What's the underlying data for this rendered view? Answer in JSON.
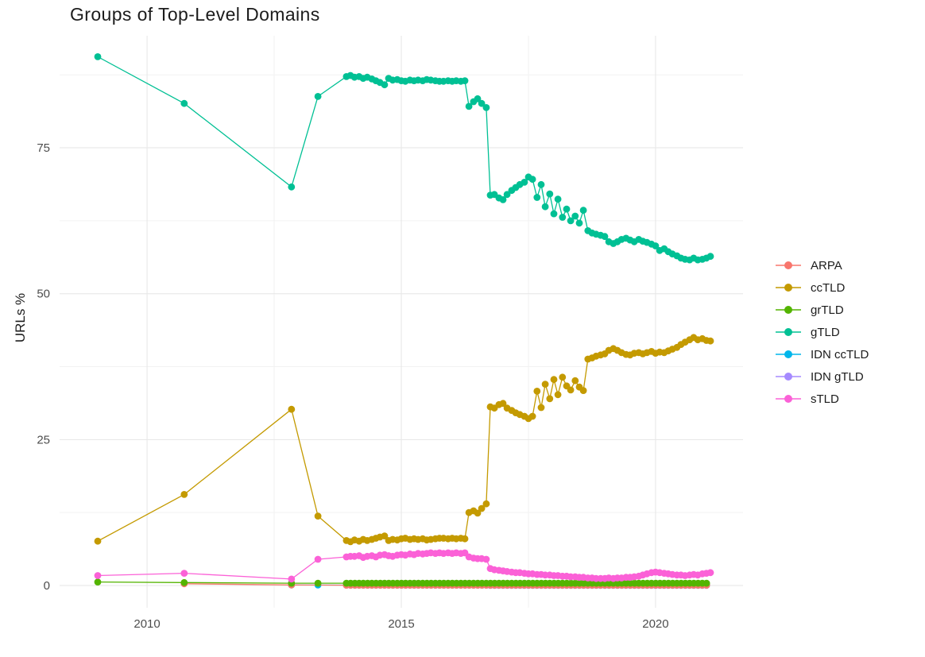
{
  "page": {
    "background": "#ffffff"
  },
  "chart_data": {
    "type": "scatter",
    "title": "Groups of Top-Level Domains",
    "xlabel": "",
    "ylabel": "URLs %",
    "legend_position": "right",
    "grid": "major and minor gridlines, light gray on white",
    "xlim": [
      2008.28,
      2021.72
    ],
    "ylim": [
      -3.81,
      94.2
    ],
    "x_ticks": [
      {
        "v": 2010,
        "label": "2010"
      },
      {
        "v": 2015,
        "label": "2015"
      },
      {
        "v": 2020,
        "label": "2020"
      }
    ],
    "x_minor": [
      2012.5,
      2017.5
    ],
    "y_ticks": [
      {
        "v": 0,
        "label": "0"
      },
      {
        "v": 25,
        "label": "25"
      },
      {
        "v": 50,
        "label": "50"
      },
      {
        "v": 75,
        "label": "75"
      }
    ],
    "y_minor": [
      12.5,
      37.5,
      62.5,
      87.5
    ],
    "draw_order": [
      5,
      4,
      0,
      2,
      6,
      1,
      3
    ],
    "series": [
      {
        "name": "ARPA",
        "color": "#F8766D",
        "points": [
          [
            2010.73,
            0.3
          ],
          [
            2012.84,
            0.1
          ]
        ],
        "flat": {
          "from": 2013.92,
          "to": 2021.08,
          "value": 0.05
        }
      },
      {
        "name": "ccTLD",
        "color": "#C49A00",
        "points": [
          [
            2009.03,
            7.6
          ],
          [
            2010.73,
            15.6
          ],
          [
            2012.84,
            30.2
          ],
          [
            2013.36,
            11.9
          ],
          [
            2013.92,
            7.7
          ],
          [
            2014,
            7.5
          ],
          [
            2014.08,
            7.8
          ],
          [
            2014.17,
            7.6
          ],
          [
            2014.25,
            7.9
          ],
          [
            2014.33,
            7.7
          ],
          [
            2014.42,
            7.9
          ],
          [
            2014.5,
            8.1
          ],
          [
            2014.58,
            8.3
          ],
          [
            2014.67,
            8.5
          ],
          [
            2014.75,
            7.7
          ],
          [
            2014.83,
            7.9
          ],
          [
            2014.92,
            7.8
          ],
          [
            2015,
            8
          ],
          [
            2015.08,
            8.1
          ],
          [
            2015.17,
            7.9
          ],
          [
            2015.25,
            8
          ],
          [
            2015.33,
            7.9
          ],
          [
            2015.42,
            8
          ],
          [
            2015.5,
            7.8
          ],
          [
            2015.58,
            7.9
          ],
          [
            2015.67,
            8
          ],
          [
            2015.75,
            8.1
          ],
          [
            2015.83,
            8.1
          ],
          [
            2015.92,
            8
          ],
          [
            2016,
            8.1
          ],
          [
            2016.08,
            8
          ],
          [
            2016.17,
            8.1
          ],
          [
            2016.25,
            8
          ],
          [
            2016.33,
            12.5
          ],
          [
            2016.42,
            12.8
          ],
          [
            2016.5,
            12.4
          ],
          [
            2016.58,
            13.2
          ],
          [
            2016.67,
            14
          ],
          [
            2016.75,
            30.6
          ],
          [
            2016.83,
            30.4
          ],
          [
            2016.92,
            31
          ],
          [
            2017,
            31.2
          ],
          [
            2017.08,
            30.4
          ],
          [
            2017.17,
            30
          ],
          [
            2017.25,
            29.6
          ],
          [
            2017.33,
            29.3
          ],
          [
            2017.42,
            29
          ],
          [
            2017.5,
            28.6
          ],
          [
            2017.58,
            29
          ],
          [
            2017.67,
            33.3
          ],
          [
            2017.75,
            30.5
          ],
          [
            2017.83,
            34.5
          ],
          [
            2017.92,
            32
          ],
          [
            2018,
            35.3
          ],
          [
            2018.08,
            32.7
          ],
          [
            2018.17,
            35.7
          ],
          [
            2018.25,
            34.2
          ],
          [
            2018.33,
            33.5
          ],
          [
            2018.42,
            35.1
          ],
          [
            2018.5,
            34
          ],
          [
            2018.58,
            33.4
          ],
          [
            2018.67,
            38.8
          ],
          [
            2018.75,
            39
          ],
          [
            2018.83,
            39.3
          ],
          [
            2018.92,
            39.5
          ],
          [
            2019,
            39.7
          ],
          [
            2019.08,
            40.3
          ],
          [
            2019.17,
            40.6
          ],
          [
            2019.25,
            40.3
          ],
          [
            2019.33,
            39.9
          ],
          [
            2019.42,
            39.6
          ],
          [
            2019.5,
            39.5
          ],
          [
            2019.58,
            39.8
          ],
          [
            2019.67,
            39.9
          ],
          [
            2019.75,
            39.7
          ],
          [
            2019.83,
            39.9
          ],
          [
            2019.92,
            40.1
          ],
          [
            2020,
            39.8
          ],
          [
            2020.08,
            40
          ],
          [
            2020.17,
            39.9
          ],
          [
            2020.25,
            40.2
          ],
          [
            2020.33,
            40.5
          ],
          [
            2020.42,
            40.8
          ],
          [
            2020.5,
            41.3
          ],
          [
            2020.58,
            41.7
          ],
          [
            2020.67,
            42.1
          ],
          [
            2020.75,
            42.5
          ],
          [
            2020.83,
            42.1
          ],
          [
            2020.92,
            42.3
          ],
          [
            2021,
            42
          ],
          [
            2021.08,
            41.9
          ]
        ]
      },
      {
        "name": "grTLD",
        "color": "#53B400",
        "points": [
          [
            2009.03,
            0.6
          ],
          [
            2010.73,
            0.5
          ],
          [
            2012.84,
            0.4
          ],
          [
            2013.36,
            0.4
          ]
        ],
        "flat": {
          "from": 2013.92,
          "to": 2021.08,
          "value": 0.4
        }
      },
      {
        "name": "gTLD",
        "color": "#00C094",
        "points": [
          [
            2009.03,
            90.6
          ],
          [
            2010.73,
            82.6
          ],
          [
            2012.84,
            68.3
          ],
          [
            2013.36,
            83.8
          ],
          [
            2013.92,
            87.2
          ],
          [
            2014,
            87.4
          ],
          [
            2014.08,
            87.1
          ],
          [
            2014.17,
            87.2
          ],
          [
            2014.25,
            86.9
          ],
          [
            2014.33,
            87.1
          ],
          [
            2014.42,
            86.8
          ],
          [
            2014.5,
            86.5
          ],
          [
            2014.58,
            86.2
          ],
          [
            2014.67,
            85.8
          ],
          [
            2014.75,
            86.9
          ],
          [
            2014.83,
            86.6
          ],
          [
            2014.92,
            86.7
          ],
          [
            2015,
            86.5
          ],
          [
            2015.08,
            86.4
          ],
          [
            2015.17,
            86.6
          ],
          [
            2015.25,
            86.5
          ],
          [
            2015.33,
            86.6
          ],
          [
            2015.42,
            86.5
          ],
          [
            2015.5,
            86.7
          ],
          [
            2015.58,
            86.6
          ],
          [
            2015.67,
            86.5
          ],
          [
            2015.75,
            86.4
          ],
          [
            2015.83,
            86.4
          ],
          [
            2015.92,
            86.5
          ],
          [
            2016,
            86.4
          ],
          [
            2016.08,
            86.5
          ],
          [
            2016.17,
            86.4
          ],
          [
            2016.25,
            86.5
          ],
          [
            2016.33,
            82.1
          ],
          [
            2016.42,
            82.9
          ],
          [
            2016.5,
            83.4
          ],
          [
            2016.58,
            82.6
          ],
          [
            2016.67,
            81.9
          ],
          [
            2016.75,
            66.9
          ],
          [
            2016.83,
            67
          ],
          [
            2016.92,
            66.4
          ],
          [
            2017,
            66.1
          ],
          [
            2017.08,
            67
          ],
          [
            2017.17,
            67.7
          ],
          [
            2017.25,
            68.2
          ],
          [
            2017.33,
            68.7
          ],
          [
            2017.42,
            69.1
          ],
          [
            2017.5,
            70
          ],
          [
            2017.58,
            69.6
          ],
          [
            2017.67,
            66.5
          ],
          [
            2017.75,
            68.7
          ],
          [
            2017.83,
            64.9
          ],
          [
            2017.92,
            67.1
          ],
          [
            2018,
            63.7
          ],
          [
            2018.08,
            66.2
          ],
          [
            2018.17,
            63.1
          ],
          [
            2018.25,
            64.5
          ],
          [
            2018.33,
            62.5
          ],
          [
            2018.42,
            63.3
          ],
          [
            2018.5,
            62.1
          ],
          [
            2018.58,
            64.3
          ],
          [
            2018.67,
            60.8
          ],
          [
            2018.75,
            60.4
          ],
          [
            2018.83,
            60.2
          ],
          [
            2018.92,
            60
          ],
          [
            2019,
            59.8
          ],
          [
            2019.08,
            58.9
          ],
          [
            2019.17,
            58.6
          ],
          [
            2019.25,
            58.9
          ],
          [
            2019.33,
            59.3
          ],
          [
            2019.42,
            59.5
          ],
          [
            2019.5,
            59.2
          ],
          [
            2019.58,
            58.9
          ],
          [
            2019.67,
            59.3
          ],
          [
            2019.75,
            59
          ],
          [
            2019.83,
            58.8
          ],
          [
            2019.92,
            58.5
          ],
          [
            2020,
            58.2
          ],
          [
            2020.08,
            57.4
          ],
          [
            2020.17,
            57.7
          ],
          [
            2020.25,
            57.2
          ],
          [
            2020.33,
            56.8
          ],
          [
            2020.42,
            56.5
          ],
          [
            2020.5,
            56.1
          ],
          [
            2020.58,
            55.9
          ],
          [
            2020.67,
            55.8
          ],
          [
            2020.75,
            56.1
          ],
          [
            2020.83,
            55.8
          ],
          [
            2020.92,
            55.9
          ],
          [
            2021,
            56.1
          ],
          [
            2021.08,
            56.4
          ]
        ]
      },
      {
        "name": "IDN ccTLD",
        "color": "#00B6EB",
        "points": [
          [
            2012.84,
            0.1
          ],
          [
            2013.36,
            0.08
          ]
        ],
        "flat": {
          "from": 2013.92,
          "to": 2021.08,
          "value": 0.07
        }
      },
      {
        "name": "IDN gTLD",
        "color": "#A58AFF",
        "points": [],
        "flat": {
          "from": 2016.75,
          "to": 2021.08,
          "value": 0.03
        }
      },
      {
        "name": "sTLD",
        "color": "#FB61D7",
        "points": [
          [
            2009.03,
            1.7
          ],
          [
            2010.73,
            2.1
          ],
          [
            2012.84,
            1.1
          ],
          [
            2013.36,
            4.5
          ],
          [
            2013.92,
            4.9
          ],
          [
            2014,
            5
          ],
          [
            2014.08,
            5
          ],
          [
            2014.17,
            5.1
          ],
          [
            2014.25,
            4.8
          ],
          [
            2014.33,
            5
          ],
          [
            2014.42,
            5.1
          ],
          [
            2014.5,
            4.9
          ],
          [
            2014.58,
            5.2
          ],
          [
            2014.67,
            5.3
          ],
          [
            2014.75,
            5.1
          ],
          [
            2014.83,
            5
          ],
          [
            2014.92,
            5.2
          ],
          [
            2015,
            5.3
          ],
          [
            2015.08,
            5.2
          ],
          [
            2015.17,
            5.4
          ],
          [
            2015.25,
            5.3
          ],
          [
            2015.33,
            5.5
          ],
          [
            2015.42,
            5.4
          ],
          [
            2015.5,
            5.5
          ],
          [
            2015.58,
            5.6
          ],
          [
            2015.67,
            5.5
          ],
          [
            2015.75,
            5.6
          ],
          [
            2015.83,
            5.5
          ],
          [
            2015.92,
            5.6
          ],
          [
            2016,
            5.5
          ],
          [
            2016.08,
            5.6
          ],
          [
            2016.17,
            5.5
          ],
          [
            2016.25,
            5.6
          ],
          [
            2016.33,
            4.9
          ],
          [
            2016.42,
            4.7
          ],
          [
            2016.5,
            4.6
          ],
          [
            2016.58,
            4.6
          ],
          [
            2016.67,
            4.5
          ],
          [
            2016.75,
            2.9
          ],
          [
            2016.83,
            2.7
          ],
          [
            2016.92,
            2.6
          ],
          [
            2017,
            2.5
          ],
          [
            2017.08,
            2.4
          ],
          [
            2017.17,
            2.3
          ],
          [
            2017.25,
            2.2
          ],
          [
            2017.33,
            2.2
          ],
          [
            2017.42,
            2.1
          ],
          [
            2017.5,
            2
          ],
          [
            2017.58,
            2
          ],
          [
            2017.67,
            1.9
          ],
          [
            2017.75,
            1.9
          ],
          [
            2017.83,
            1.8
          ],
          [
            2017.92,
            1.8
          ],
          [
            2018,
            1.7
          ],
          [
            2018.08,
            1.7
          ],
          [
            2018.17,
            1.6
          ],
          [
            2018.25,
            1.6
          ],
          [
            2018.33,
            1.5
          ],
          [
            2018.42,
            1.5
          ],
          [
            2018.5,
            1.4
          ],
          [
            2018.58,
            1.4
          ],
          [
            2018.67,
            1.3
          ],
          [
            2018.75,
            1.3
          ],
          [
            2018.83,
            1.2
          ],
          [
            2018.92,
            1.2
          ],
          [
            2019,
            1.2
          ],
          [
            2019.08,
            1.3
          ],
          [
            2019.17,
            1.2
          ],
          [
            2019.25,
            1.3
          ],
          [
            2019.33,
            1.3
          ],
          [
            2019.42,
            1.4
          ],
          [
            2019.5,
            1.4
          ],
          [
            2019.58,
            1.5
          ],
          [
            2019.67,
            1.6
          ],
          [
            2019.75,
            1.8
          ],
          [
            2019.83,
            2
          ],
          [
            2019.92,
            2.2
          ],
          [
            2020,
            2.3
          ],
          [
            2020.08,
            2.2
          ],
          [
            2020.17,
            2.1
          ],
          [
            2020.25,
            2
          ],
          [
            2020.33,
            1.9
          ],
          [
            2020.42,
            1.8
          ],
          [
            2020.5,
            1.8
          ],
          [
            2020.58,
            1.7
          ],
          [
            2020.67,
            1.8
          ],
          [
            2020.75,
            1.9
          ],
          [
            2020.83,
            1.8
          ],
          [
            2020.92,
            2
          ],
          [
            2021,
            2.1
          ],
          [
            2021.08,
            2.2
          ]
        ]
      }
    ],
    "style": {
      "major_grid_color": "#e6e6e6",
      "minor_grid_color": "#f2f2f2",
      "tick_label_color": "#4d4d4d",
      "title_color": "#1c1c1c",
      "point_radius": 4.4,
      "line_width": 1.3
    }
  }
}
